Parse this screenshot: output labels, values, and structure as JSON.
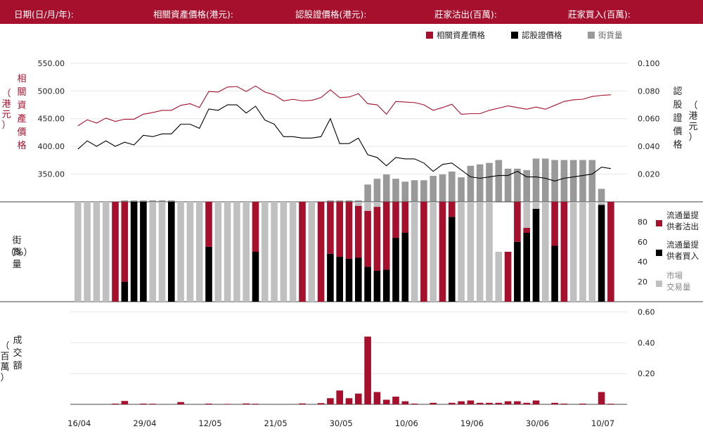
{
  "header": {
    "date_label": "日期(日/月/年):",
    "underlying_label": "相關資產價格(港元):",
    "warrant_label": "認股證價格(港元):",
    "mm_sell_label": "莊家沽出(百萬):",
    "mm_buy_label": "莊家買入(百萬):"
  },
  "colors": {
    "accent": "#a6102d",
    "black": "#000000",
    "outstanding_gray": "#999999",
    "market_gray": "#c0c0c0",
    "grid": "#e6e6e6"
  },
  "chart_data": [
    {
      "type": "line",
      "legend": [
        "相關資產價格",
        "認股證價格",
        "街貨量"
      ],
      "left_axis_label": "相關資產價格（港元）",
      "right_axis_label": "認股證價格（港元）",
      "left_ticks": [
        "550.00",
        "500.00",
        "450.00",
        "400.00",
        "350.00"
      ],
      "right_ticks": [
        "0.100",
        "0.080",
        "0.060",
        "0.040",
        "0.020"
      ],
      "left_ylim": [
        300,
        560
      ],
      "right_ylim": [
        0,
        0.104
      ],
      "series": [
        {
          "name": "相關資產價格",
          "values": [
            437,
            448,
            442,
            451,
            445,
            449,
            449,
            458,
            461,
            465,
            465,
            474,
            477,
            470,
            499,
            498,
            507,
            508,
            499,
            509,
            498,
            493,
            482,
            485,
            482,
            483,
            488,
            502,
            488,
            489,
            495,
            477,
            475,
            458,
            481,
            480,
            479,
            475,
            465,
            470,
            476,
            458,
            459,
            459,
            465,
            469,
            473,
            470,
            467,
            471,
            467,
            474,
            481,
            484,
            485,
            490,
            492,
            493
          ],
          "legend_only": false
        },
        {
          "name": "認股證價格",
          "values": [
            0.038,
            0.044,
            0.04,
            0.044,
            0.04,
            0.043,
            0.041,
            0.048,
            0.047,
            0.049,
            0.049,
            0.056,
            0.056,
            0.053,
            0.067,
            0.066,
            0.07,
            0.07,
            0.064,
            0.069,
            0.059,
            0.056,
            0.047,
            0.047,
            0.046,
            0.046,
            0.047,
            0.06,
            0.042,
            0.042,
            0.046,
            0.034,
            0.032,
            0.026,
            0.032,
            0.031,
            0.031,
            0.028,
            0.022,
            0.027,
            0.028,
            0.023,
            0.018,
            0.017,
            0.018,
            0.019,
            0.019,
            0.022,
            0.018,
            0.018,
            0.017,
            0.015,
            0.017,
            0.018,
            0.019,
            0.02,
            0.025,
            0.024
          ],
          "legend_only": false
        }
      ],
      "outstanding": {
        "name": "街貨量",
        "values": [
          0,
          0,
          0,
          0,
          0,
          1,
          1,
          1,
          1,
          1,
          1,
          0,
          0,
          0,
          0,
          0,
          0,
          0,
          0,
          0,
          0,
          0,
          0,
          0,
          0,
          0,
          0,
          1,
          1,
          1,
          1,
          12,
          16,
          19,
          16,
          14,
          15,
          15,
          18,
          19,
          21,
          17,
          25,
          26,
          27,
          29,
          23,
          23,
          22,
          30,
          30,
          29,
          29,
          29,
          29,
          29,
          9,
          0
        ],
        "max": 100
      }
    },
    {
      "type": "bar",
      "axis_label": "街貨量（%）",
      "ticks": [
        "80",
        "60",
        "40",
        "20"
      ],
      "ylim": [
        0,
        100
      ],
      "legend": [
        "流通量提供者沽出",
        "流通量提供者買入",
        "市場交易量"
      ],
      "stack_order": [
        "流通量提供者買入",
        "流通量提供者沽出",
        "市場交易量"
      ],
      "sell": [
        0,
        0,
        0,
        0,
        100,
        80,
        0,
        0,
        0,
        0,
        0,
        0,
        0,
        0,
        45,
        0,
        0,
        0,
        0,
        50,
        0,
        0,
        0,
        0,
        100,
        0,
        100,
        52,
        55,
        57,
        52,
        56,
        64,
        68,
        36,
        31,
        0,
        100,
        0,
        100,
        15,
        0,
        0,
        0,
        0,
        0,
        50,
        40,
        5,
        0,
        0,
        44,
        100,
        0,
        0,
        0,
        0,
        100
      ],
      "buy": [
        0,
        0,
        0,
        0,
        0,
        20,
        100,
        100,
        0,
        0,
        100,
        0,
        0,
        0,
        55,
        0,
        0,
        0,
        0,
        50,
        0,
        0,
        0,
        0,
        0,
        0,
        0,
        48,
        45,
        43,
        44,
        35,
        31,
        32,
        64,
        69,
        0,
        0,
        0,
        0,
        85,
        0,
        0,
        0,
        0,
        0,
        0,
        60,
        69,
        93,
        0,
        56,
        0,
        0,
        0,
        0,
        97,
        0
      ],
      "market": [
        100,
        100,
        100,
        100,
        0,
        0,
        0,
        0,
        100,
        100,
        0,
        100,
        100,
        100,
        0,
        100,
        100,
        100,
        100,
        0,
        100,
        100,
        100,
        100,
        0,
        100,
        0,
        0,
        0,
        0,
        4,
        9,
        5,
        0,
        0,
        0,
        100,
        0,
        100,
        0,
        0,
        100,
        100,
        100,
        100,
        50,
        0,
        0,
        26,
        7,
        100,
        0,
        0,
        100,
        100,
        100,
        3,
        0
      ]
    },
    {
      "type": "bar",
      "axis_label": "成交額（百萬）",
      "ticks": [
        "0.60",
        "0.40",
        "0.20"
      ],
      "ylim": [
        0,
        0.63
      ],
      "values": [
        0,
        0,
        0,
        0,
        0.005,
        0.022,
        0,
        0.005,
        0.004,
        0,
        0,
        0.015,
        0,
        0,
        0.005,
        0,
        0.003,
        0,
        0.006,
        0.004,
        0,
        0,
        0,
        0,
        0.006,
        0,
        0.008,
        0.04,
        0.09,
        0.04,
        0.07,
        0.44,
        0.08,
        0.03,
        0.05,
        0.02,
        0.005,
        0,
        0.01,
        0,
        0.01,
        0.02,
        0.025,
        0.01,
        0.01,
        0.01,
        0.02,
        0.02,
        0.01,
        0.025,
        0,
        0.01,
        0.005,
        0,
        0.005,
        0,
        0.08,
        0.004
      ]
    }
  ],
  "x_labels": [
    "16/04",
    "29/04",
    "12/05",
    "21/05",
    "30/05",
    "10/06",
    "19/06",
    "30/06",
    "10/07"
  ]
}
